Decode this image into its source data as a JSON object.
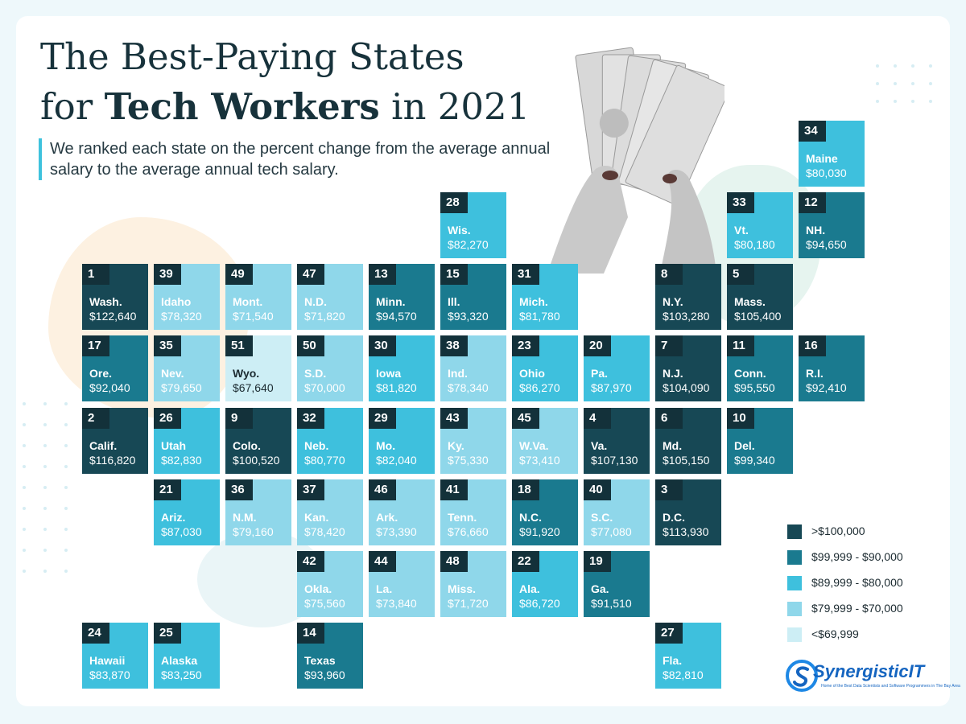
{
  "title": {
    "line1": "The Best-Paying States",
    "line2_pre": "for ",
    "line2_bold": "Tech Workers",
    "line2_post": " in 2021"
  },
  "subtitle": "We ranked each state on the percent change from the average annual salary to the average annual tech salary.",
  "legend": [
    {
      "label": ">$100,000",
      "color": "#174855"
    },
    {
      "label": "$99,999 - $90,000",
      "color": "#1a7a8f"
    },
    {
      "label": "$89,999 - $80,000",
      "color": "#3ec0dd"
    },
    {
      "label": "$79,999 - $70,000",
      "color": "#8fd7ea"
    },
    {
      "label": "<$69,999",
      "color": "#cdeef5"
    }
  ],
  "logo": {
    "name": "SynergisticIT",
    "tagline": "Home of the Best Data Scientists and Software Programmers in The Bay Area"
  },
  "chart_data": {
    "type": "table",
    "columns": [
      "rank",
      "state",
      "average_annual_tech_salary"
    ],
    "rows": [
      [
        34,
        "Maine",
        "$80,030"
      ],
      [
        28,
        "Wis.",
        "$82,270"
      ],
      [
        33,
        "Vt.",
        "$80,180"
      ],
      [
        12,
        "NH.",
        "$94,650"
      ],
      [
        1,
        "Wash.",
        "$122,640"
      ],
      [
        39,
        "Idaho",
        "$78,320"
      ],
      [
        49,
        "Mont.",
        "$71,540"
      ],
      [
        47,
        "N.D.",
        "$71,820"
      ],
      [
        13,
        "Minn.",
        "$94,570"
      ],
      [
        15,
        "Ill.",
        "$93,320"
      ],
      [
        31,
        "Mich.",
        "$81,780"
      ],
      [
        8,
        "N.Y.",
        "$103,280"
      ],
      [
        5,
        "Mass.",
        "$105,400"
      ],
      [
        17,
        "Ore.",
        "$92,040"
      ],
      [
        35,
        "Nev.",
        "$79,650"
      ],
      [
        51,
        "Wyo.",
        "$67,640"
      ],
      [
        50,
        "S.D.",
        "$70,000"
      ],
      [
        30,
        "Iowa",
        "$81,820"
      ],
      [
        38,
        "Ind.",
        "$78,340"
      ],
      [
        23,
        "Ohio",
        "$86,270"
      ],
      [
        20,
        "Pa.",
        "$87,970"
      ],
      [
        7,
        "N.J.",
        "$104,090"
      ],
      [
        11,
        "Conn.",
        "$95,550"
      ],
      [
        16,
        "R.I.",
        "$92,410"
      ],
      [
        2,
        "Calif.",
        "$116,820"
      ],
      [
        26,
        "Utah",
        "$82,830"
      ],
      [
        9,
        "Colo.",
        "$100,520"
      ],
      [
        32,
        "Neb.",
        "$80,770"
      ],
      [
        29,
        "Mo.",
        "$82,040"
      ],
      [
        43,
        "Ky.",
        "$75,330"
      ],
      [
        45,
        "W.Va.",
        "$73,410"
      ],
      [
        4,
        "Va.",
        "$107,130"
      ],
      [
        6,
        "Md.",
        "$105,150"
      ],
      [
        10,
        "Del.",
        "$99,340"
      ],
      [
        21,
        "Ariz.",
        "$87,030"
      ],
      [
        36,
        "N.M.",
        "$79,160"
      ],
      [
        37,
        "Kan.",
        "$78,420"
      ],
      [
        46,
        "Ark.",
        "$73,390"
      ],
      [
        41,
        "Tenn.",
        "$76,660"
      ],
      [
        18,
        "N.C.",
        "$91,920"
      ],
      [
        40,
        "S.C.",
        "$77,080"
      ],
      [
        3,
        "D.C.",
        "$113,930"
      ],
      [
        42,
        "Okla.",
        "$75,560"
      ],
      [
        44,
        "La.",
        "$73,840"
      ],
      [
        48,
        "Miss.",
        "$71,720"
      ],
      [
        22,
        "Ala.",
        "$86,720"
      ],
      [
        19,
        "Ga.",
        "$91,510"
      ],
      [
        24,
        "Hawaii",
        "$83,870"
      ],
      [
        25,
        "Alaska",
        "$83,250"
      ],
      [
        14,
        "Texas",
        "$93,960"
      ],
      [
        27,
        "Fla.",
        "$82,810"
      ]
    ]
  }
}
